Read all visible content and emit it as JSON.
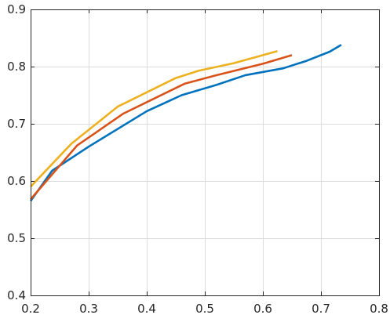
{
  "chart_data": {
    "type": "line",
    "title": "",
    "xlabel": "",
    "ylabel": "",
    "xlim": [
      0.2,
      0.8
    ],
    "ylim": [
      0.4,
      0.9
    ],
    "xticks": [
      0.2,
      0.3,
      0.4,
      0.5,
      0.6,
      0.7,
      0.8
    ],
    "yticks": [
      0.4,
      0.5,
      0.6,
      0.7,
      0.8,
      0.9
    ],
    "xtick_labels": [
      "0.2",
      "0.3",
      "0.4",
      "0.5",
      "0.6",
      "0.7",
      "0.8"
    ],
    "ytick_labels": [
      "0.4",
      "0.5",
      "0.6",
      "0.7",
      "0.8",
      "0.9"
    ],
    "grid": true,
    "legend": null,
    "series": [
      {
        "color": "#0072BD",
        "x": [
          0.2,
          0.237,
          0.3,
          0.4,
          0.46,
          0.52,
          0.57,
          0.635,
          0.675,
          0.715,
          0.735
        ],
        "y": [
          0.565,
          0.618,
          0.66,
          0.722,
          0.75,
          0.768,
          0.785,
          0.797,
          0.81,
          0.826,
          0.838
        ]
      },
      {
        "color": "#D95319",
        "x": [
          0.2,
          0.28,
          0.36,
          0.465,
          0.52,
          0.6,
          0.65
        ],
        "y": [
          0.568,
          0.662,
          0.718,
          0.77,
          0.785,
          0.805,
          0.82
        ]
      },
      {
        "color": "#EDB120",
        "x": [
          0.2,
          0.27,
          0.35,
          0.45,
          0.49,
          0.55,
          0.625
        ],
        "y": [
          0.59,
          0.665,
          0.73,
          0.78,
          0.793,
          0.806,
          0.827
        ]
      }
    ]
  }
}
